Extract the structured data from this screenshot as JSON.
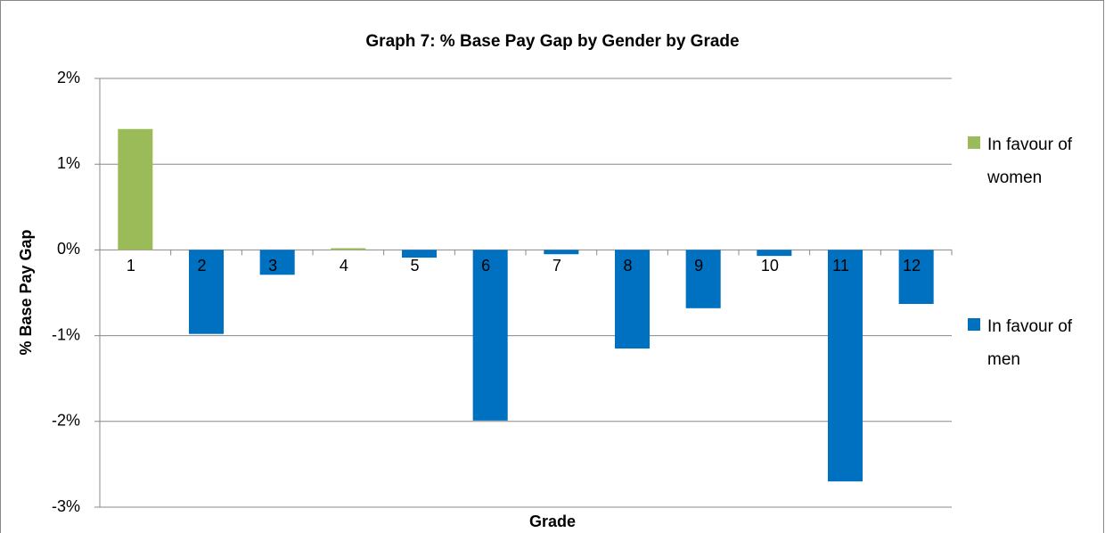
{
  "chart_data": {
    "type": "bar",
    "title": "Graph 7: % Base Pay Gap by Gender by Grade",
    "x_label": "Grade",
    "y_label": "% Base Pay Gap",
    "categories": [
      "1",
      "2",
      "3",
      "4",
      "5",
      "6",
      "7",
      "8",
      "9",
      "10",
      "11",
      "12"
    ],
    "series": [
      {
        "name": "In favour of women",
        "color": "#9bbb59",
        "values": [
          1.41,
          null,
          null,
          0.02,
          null,
          null,
          null,
          null,
          null,
          null,
          null,
          null
        ]
      },
      {
        "name": "In favour of men",
        "color": "#0070c0",
        "values": [
          null,
          -0.98,
          -0.29,
          null,
          -0.09,
          -1.99,
          -0.05,
          -1.15,
          -0.68,
          -0.07,
          -2.7,
          -0.63
        ]
      }
    ],
    "ylim": [
      -3,
      2
    ],
    "yticks": [
      {
        "value": -3,
        "label": "-3%"
      },
      {
        "value": -2,
        "label": "-2%"
      },
      {
        "value": -1,
        "label": "-1%"
      },
      {
        "value": 0,
        "label": "0%"
      },
      {
        "value": 1,
        "label": "1%"
      },
      {
        "value": 2,
        "label": "2%"
      }
    ],
    "grid": true,
    "legend": "right"
  }
}
